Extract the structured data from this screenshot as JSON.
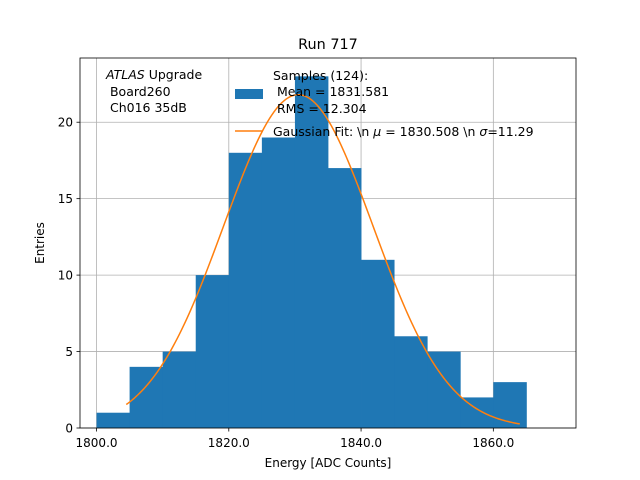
{
  "chart_data": {
    "type": "bar",
    "title": "Run 717",
    "xlabel": "Energy [ADC Counts]",
    "ylabel": "Entries",
    "xlim": [
      1797.5,
      1872.5
    ],
    "ylim": [
      0,
      24.2
    ],
    "xticks": [
      1800,
      1820,
      1840,
      1860
    ],
    "xtick_labels": [
      "1800.0",
      "1820.0",
      "1840.0",
      "1860.0"
    ],
    "yticks": [
      0,
      5,
      10,
      15,
      20
    ],
    "ytick_labels": [
      "0",
      "5",
      "10",
      "15",
      "20"
    ],
    "grid": true,
    "legend_position": "top-right",
    "bin_edges": [
      1800,
      1805,
      1810,
      1815,
      1820,
      1825,
      1830,
      1835,
      1840,
      1845,
      1850,
      1855,
      1860,
      1865
    ],
    "bar_values": [
      1,
      4,
      5,
      10,
      18,
      19,
      23,
      17,
      11,
      6,
      5,
      2,
      3
    ],
    "bar_color": "#1f77b4",
    "fit": {
      "mu": 1830.508,
      "sigma": 11.29,
      "amplitude": 21.8,
      "x_start": 1804.5,
      "x_end": 1864.0,
      "color": "#ff7f0e"
    },
    "series": [
      {
        "name": "Samples (124):",
        "detail_lines": [
          " Mean = 1831.581",
          " RMS = 12.304"
        ]
      },
      {
        "name": "Gaussian Fit: \\n $\\mu$ = 1830.508 \\n $\\sigma$=11.29"
      }
    ],
    "annotation": {
      "line1_italic": "ATLAS",
      "line1_rest": " Upgrade",
      "line2": " Board260",
      "line3": " Ch016 35dB"
    }
  },
  "legend": {
    "samples_line1": "Samples (124):",
    "samples_line2": " Mean = 1831.581",
    "samples_line3": " RMS = 12.304",
    "fit_prefix": "Gaussian Fit: \\n ",
    "fit_mu": "μ",
    "fit_middle": " = 1830.508 \\n ",
    "fit_sigma": "σ",
    "fit_suffix": "=11.29"
  }
}
